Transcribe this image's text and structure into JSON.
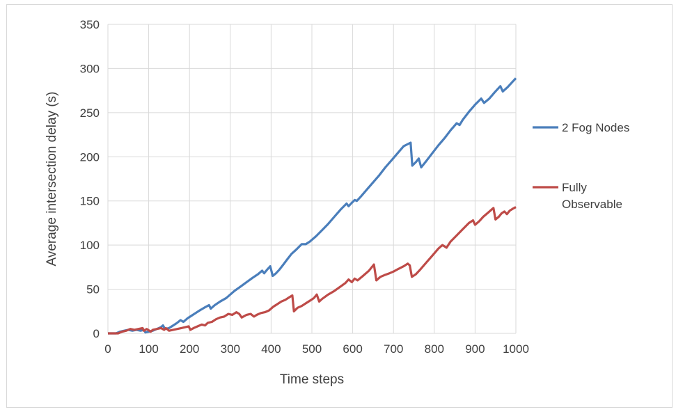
{
  "chart_data": {
    "type": "line",
    "title": "",
    "xlabel": "Time steps",
    "ylabel": "Average intersection delay (s)",
    "xlim": [
      0,
      1000
    ],
    "ylim": [
      0,
      350
    ],
    "x_ticks": [
      0,
      100,
      200,
      300,
      400,
      500,
      600,
      700,
      800,
      900,
      1000
    ],
    "y_ticks": [
      0,
      50,
      100,
      150,
      200,
      250,
      300,
      350
    ],
    "grid": true,
    "legend_position": "right",
    "series": [
      {
        "name": "2 Fog Nodes",
        "color": "#4a7ebb",
        "points": [
          [
            0,
            0
          ],
          [
            20,
            0
          ],
          [
            30,
            2
          ],
          [
            40,
            3
          ],
          [
            50,
            4
          ],
          [
            60,
            3
          ],
          [
            70,
            4
          ],
          [
            80,
            3
          ],
          [
            88,
            4
          ],
          [
            92,
            1
          ],
          [
            100,
            2
          ],
          [
            110,
            3
          ],
          [
            120,
            5
          ],
          [
            130,
            7
          ],
          [
            135,
            9
          ],
          [
            140,
            5
          ],
          [
            150,
            6
          ],
          [
            160,
            9
          ],
          [
            170,
            12
          ],
          [
            178,
            15
          ],
          [
            185,
            13
          ],
          [
            195,
            17
          ],
          [
            205,
            20
          ],
          [
            215,
            23
          ],
          [
            225,
            26
          ],
          [
            240,
            30
          ],
          [
            248,
            32
          ],
          [
            252,
            28
          ],
          [
            262,
            32
          ],
          [
            275,
            36
          ],
          [
            290,
            40
          ],
          [
            300,
            44
          ],
          [
            310,
            48
          ],
          [
            325,
            53
          ],
          [
            340,
            58
          ],
          [
            355,
            63
          ],
          [
            368,
            67
          ],
          [
            378,
            71
          ],
          [
            383,
            68
          ],
          [
            390,
            72
          ],
          [
            398,
            76
          ],
          [
            404,
            65
          ],
          [
            412,
            68
          ],
          [
            420,
            72
          ],
          [
            430,
            78
          ],
          [
            440,
            84
          ],
          [
            450,
            90
          ],
          [
            462,
            95
          ],
          [
            475,
            101
          ],
          [
            485,
            101
          ],
          [
            495,
            104
          ],
          [
            510,
            110
          ],
          [
            525,
            117
          ],
          [
            540,
            124
          ],
          [
            555,
            132
          ],
          [
            570,
            140
          ],
          [
            585,
            147
          ],
          [
            590,
            144
          ],
          [
            598,
            148
          ],
          [
            605,
            151
          ],
          [
            610,
            150
          ],
          [
            620,
            155
          ],
          [
            635,
            163
          ],
          [
            650,
            171
          ],
          [
            665,
            179
          ],
          [
            680,
            188
          ],
          [
            695,
            196
          ],
          [
            710,
            204
          ],
          [
            725,
            212
          ],
          [
            742,
            216
          ],
          [
            746,
            190
          ],
          [
            755,
            194
          ],
          [
            762,
            198
          ],
          [
            768,
            188
          ],
          [
            780,
            195
          ],
          [
            795,
            204
          ],
          [
            810,
            213
          ],
          [
            825,
            221
          ],
          [
            840,
            230
          ],
          [
            855,
            238
          ],
          [
            862,
            236
          ],
          [
            870,
            242
          ],
          [
            885,
            251
          ],
          [
            900,
            259
          ],
          [
            915,
            266
          ],
          [
            922,
            261
          ],
          [
            935,
            266
          ],
          [
            948,
            273
          ],
          [
            962,
            280
          ],
          [
            968,
            274
          ],
          [
            980,
            279
          ],
          [
            990,
            284
          ],
          [
            1000,
            289
          ]
        ]
      },
      {
        "name": "Fully\nObservable",
        "color": "#be4b48",
        "points": [
          [
            0,
            0
          ],
          [
            25,
            0
          ],
          [
            35,
            2
          ],
          [
            45,
            3
          ],
          [
            55,
            5
          ],
          [
            65,
            4
          ],
          [
            75,
            5
          ],
          [
            85,
            6
          ],
          [
            88,
            3
          ],
          [
            95,
            5
          ],
          [
            105,
            2
          ],
          [
            110,
            4
          ],
          [
            120,
            5
          ],
          [
            130,
            6
          ],
          [
            138,
            4
          ],
          [
            142,
            6
          ],
          [
            150,
            3
          ],
          [
            160,
            4
          ],
          [
            170,
            5
          ],
          [
            180,
            6
          ],
          [
            190,
            7
          ],
          [
            198,
            8
          ],
          [
            202,
            4
          ],
          [
            210,
            6
          ],
          [
            220,
            8
          ],
          [
            230,
            10
          ],
          [
            238,
            9
          ],
          [
            245,
            12
          ],
          [
            255,
            13
          ],
          [
            265,
            16
          ],
          [
            275,
            18
          ],
          [
            285,
            19
          ],
          [
            295,
            22
          ],
          [
            305,
            21
          ],
          [
            315,
            24
          ],
          [
            322,
            22
          ],
          [
            328,
            18
          ],
          [
            340,
            21
          ],
          [
            350,
            22
          ],
          [
            358,
            19
          ],
          [
            365,
            21
          ],
          [
            375,
            23
          ],
          [
            385,
            24
          ],
          [
            395,
            26
          ],
          [
            405,
            30
          ],
          [
            415,
            33
          ],
          [
            425,
            36
          ],
          [
            435,
            38
          ],
          [
            445,
            41
          ],
          [
            452,
            43
          ],
          [
            456,
            25
          ],
          [
            465,
            29
          ],
          [
            475,
            31
          ],
          [
            485,
            34
          ],
          [
            495,
            37
          ],
          [
            505,
            40
          ],
          [
            512,
            44
          ],
          [
            518,
            36
          ],
          [
            525,
            39
          ],
          [
            540,
            44
          ],
          [
            555,
            48
          ],
          [
            570,
            53
          ],
          [
            582,
            57
          ],
          [
            590,
            61
          ],
          [
            598,
            58
          ],
          [
            605,
            62
          ],
          [
            612,
            60
          ],
          [
            625,
            65
          ],
          [
            640,
            71
          ],
          [
            652,
            78
          ],
          [
            658,
            60
          ],
          [
            668,
            64
          ],
          [
            678,
            66
          ],
          [
            690,
            68
          ],
          [
            700,
            70
          ],
          [
            712,
            73
          ],
          [
            725,
            76
          ],
          [
            735,
            79
          ],
          [
            740,
            77
          ],
          [
            745,
            64
          ],
          [
            755,
            67
          ],
          [
            765,
            72
          ],
          [
            780,
            80
          ],
          [
            795,
            88
          ],
          [
            810,
            96
          ],
          [
            820,
            100
          ],
          [
            830,
            97
          ],
          [
            840,
            104
          ],
          [
            855,
            111
          ],
          [
            870,
            118
          ],
          [
            885,
            125
          ],
          [
            895,
            128
          ],
          [
            900,
            123
          ],
          [
            910,
            127
          ],
          [
            920,
            132
          ],
          [
            930,
            136
          ],
          [
            940,
            140
          ],
          [
            945,
            142
          ],
          [
            950,
            129
          ],
          [
            958,
            132
          ],
          [
            965,
            136
          ],
          [
            972,
            138
          ],
          [
            978,
            135
          ],
          [
            985,
            139
          ],
          [
            992,
            141
          ],
          [
            1000,
            143
          ]
        ]
      }
    ]
  }
}
